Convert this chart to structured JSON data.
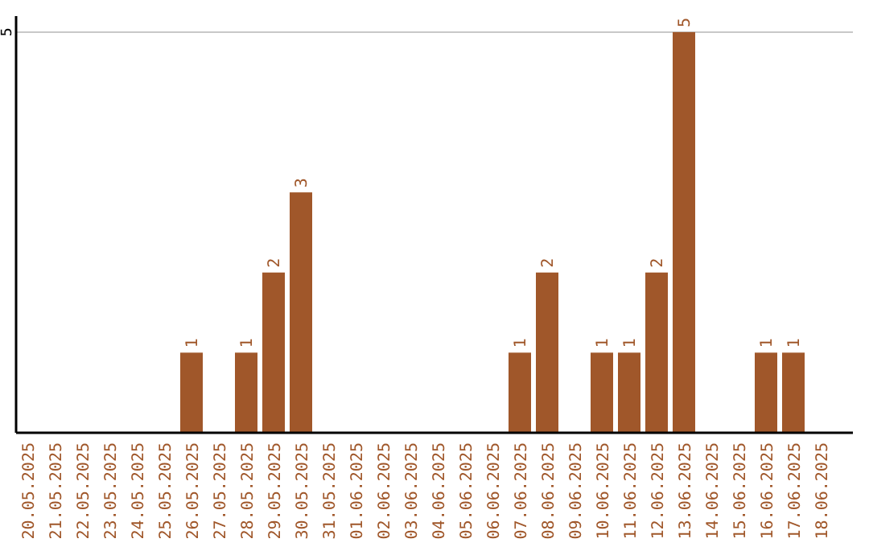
{
  "chart_data": {
    "type": "bar",
    "categories": [
      "20.05.2025",
      "21.05.2025",
      "22.05.2025",
      "23.05.2025",
      "24.05.2025",
      "25.05.2025",
      "26.05.2025",
      "27.05.2025",
      "28.05.2025",
      "29.05.2025",
      "30.05.2025",
      "31.05.2025",
      "01.06.2025",
      "02.06.2025",
      "03.06.2025",
      "04.06.2025",
      "05.06.2025",
      "06.06.2025",
      "07.06.2025",
      "08.06.2025",
      "09.06.2025",
      "10.06.2025",
      "11.06.2025",
      "12.06.2025",
      "13.06.2025",
      "14.06.2025",
      "15.06.2025",
      "16.06.2025",
      "17.06.2025",
      "18.06.2025"
    ],
    "values": [
      0,
      0,
      0,
      0,
      0,
      0,
      1,
      0,
      1,
      2,
      3,
      0,
      0,
      0,
      0,
      0,
      0,
      0,
      1,
      2,
      0,
      1,
      1,
      2,
      5,
      0,
      0,
      1,
      1,
      0
    ],
    "value_labels": [
      null,
      null,
      null,
      null,
      null,
      null,
      "1",
      null,
      "1",
      "2",
      "3",
      null,
      null,
      null,
      null,
      null,
      null,
      null,
      "1",
      "2",
      null,
      "1",
      "1",
      "2",
      "5",
      null,
      null,
      "1",
      "1",
      null
    ],
    "color": "#a0572a",
    "ylim": [
      0,
      5.2
    ],
    "yticks": [
      5
    ],
    "grid": "y"
  }
}
